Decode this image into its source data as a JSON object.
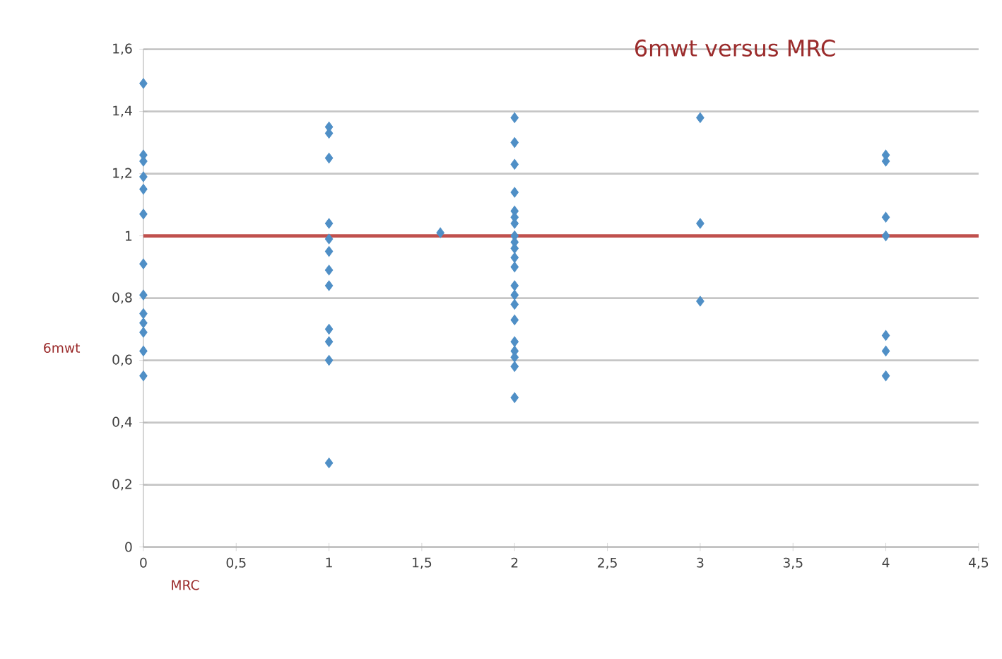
{
  "chart_data": {
    "type": "scatter",
    "title": "6mwt versus MRC",
    "xlabel": "MRC",
    "ylabel": "6mwt",
    "x": [
      0,
      0,
      0,
      0,
      0,
      0,
      0,
      0,
      0,
      0,
      0,
      0,
      0,
      1,
      1,
      1,
      1,
      1,
      1,
      1,
      1,
      1,
      1,
      1,
      1,
      1.6,
      2,
      2,
      2,
      2,
      2,
      2,
      2,
      2,
      2,
      2,
      2,
      2,
      2,
      2,
      2,
      2,
      2,
      2,
      2,
      2,
      2,
      3,
      3,
      3,
      4,
      4,
      4,
      4,
      4,
      4,
      4
    ],
    "values": [
      1.49,
      1.26,
      1.24,
      1.19,
      1.15,
      1.07,
      0.91,
      0.81,
      0.75,
      0.72,
      0.69,
      0.63,
      0.55,
      1.35,
      1.33,
      1.25,
      1.04,
      0.99,
      0.95,
      0.89,
      0.84,
      0.7,
      0.66,
      0.6,
      0.27,
      1.01,
      1.38,
      1.3,
      1.23,
      1.14,
      1.08,
      1.06,
      1.04,
      1.0,
      0.98,
      0.96,
      0.93,
      0.9,
      0.84,
      0.81,
      0.78,
      0.73,
      0.66,
      0.63,
      0.61,
      0.58,
      0.48,
      1.38,
      1.04,
      0.79,
      1.26,
      1.24,
      1.06,
      1.0,
      0.68,
      0.63,
      0.55
    ],
    "color": "#4f8fc6",
    "marker": "diamond",
    "xlim": [
      0,
      4.5
    ],
    "ylim": [
      0,
      1.6
    ],
    "xticks": [
      0,
      {
        "value": 0.5,
        "label": "0,5"
      },
      1,
      {
        "value": 1.5,
        "label": "1,5"
      },
      2,
      {
        "value": 2.5,
        "label": "2,5"
      },
      3,
      {
        "value": 3.5,
        "label": "3,5"
      },
      4,
      {
        "value": 4.5,
        "label": "4,5"
      }
    ],
    "yticks": [
      0,
      {
        "value": 0.2,
        "label": "0,2"
      },
      {
        "value": 0.4,
        "label": "0,4"
      },
      {
        "value": 0.6,
        "label": "0,6"
      },
      {
        "value": 0.8,
        "label": "0,8"
      },
      1,
      {
        "value": 1.2,
        "label": "1,2"
      },
      {
        "value": 1.4,
        "label": "1,4"
      },
      {
        "value": 1.6,
        "label": "1,6"
      }
    ],
    "grid": "y",
    "ref_lines": [
      {
        "axis": "y",
        "value": 1,
        "color": "#c0504d"
      }
    ]
  }
}
